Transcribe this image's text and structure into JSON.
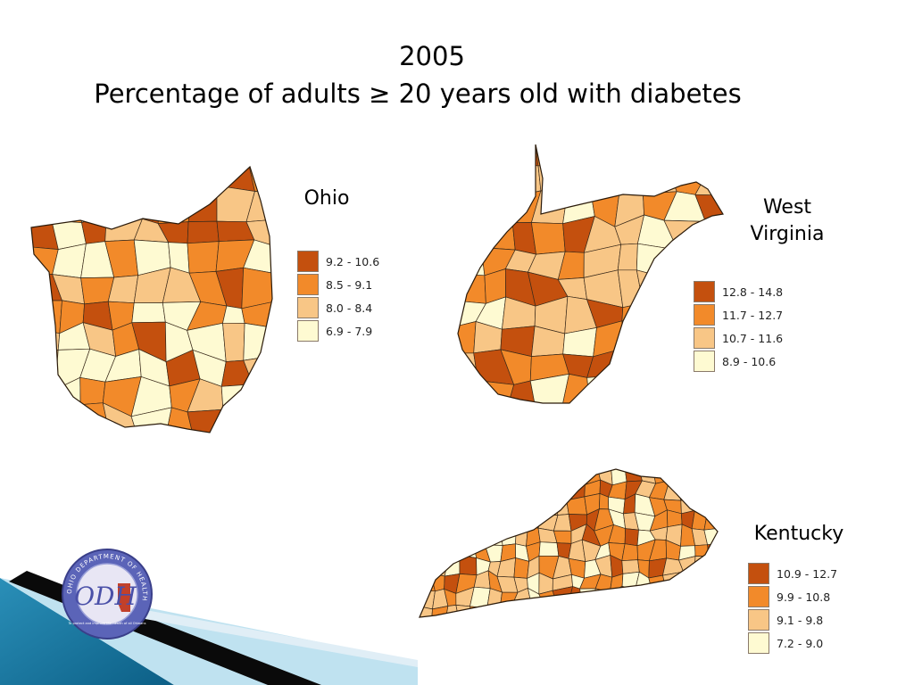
{
  "title": {
    "year": "2005",
    "main": "Percentage of adults ≥ 20 years old with diabetes"
  },
  "states": [
    {
      "id": "ohio",
      "label": "Ohio",
      "legend": [
        {
          "range": "9.2 - 10.6",
          "color": "#c4500e"
        },
        {
          "range": "8.5 - 9.1",
          "color": "#f28a2a"
        },
        {
          "range": "8.0 - 8.4",
          "color": "#f8c686"
        },
        {
          "range": "6.9 - 7.9",
          "color": "#fefad2"
        }
      ]
    },
    {
      "id": "west-virginia",
      "label_lines": [
        "West",
        "Virginia"
      ],
      "legend": [
        {
          "range": "12.8 - 14.8",
          "color": "#c4500e"
        },
        {
          "range": "11.7 - 12.7",
          "color": "#f28a2a"
        },
        {
          "range": "10.7 - 11.6",
          "color": "#f8c686"
        },
        {
          "range": "8.9 - 10.6",
          "color": "#fefad2"
        }
      ]
    },
    {
      "id": "kentucky",
      "label": "Kentucky",
      "legend": [
        {
          "range": "10.9 - 12.7",
          "color": "#c4500e"
        },
        {
          "range": "9.9 - 10.8",
          "color": "#f28a2a"
        },
        {
          "range": "9.1 - 9.8",
          "color": "#f8c686"
        },
        {
          "range": "7.2 - 9.0",
          "color": "#fefad2"
        }
      ]
    }
  ],
  "logo": {
    "text": "ODH",
    "ring_text": "OHIO DEPARTMENT OF HEALTH",
    "tagline": "To protect and improve the health of all Ohioans"
  },
  "colors": {
    "dark": "#c4500e",
    "medium": "#f28a2a",
    "light": "#f8c686",
    "lightest": "#fefad2",
    "border": "#3a2a1a"
  }
}
